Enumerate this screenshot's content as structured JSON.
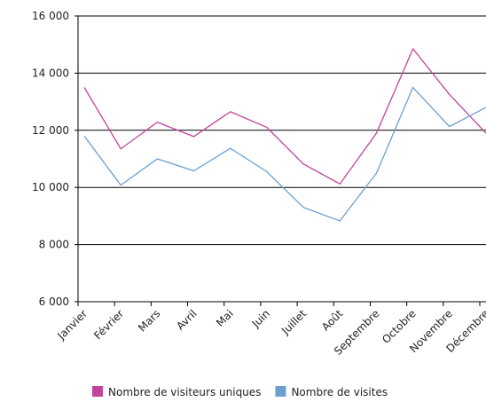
{
  "chart_data": {
    "type": "line",
    "categories": [
      "Janvier",
      "Février",
      "Mars",
      "Avril",
      "Mai",
      "Juin",
      "Juillet",
      "Août",
      "Septembre",
      "Octobre",
      "Novembre",
      "Décembre"
    ],
    "series": [
      {
        "name": "Nombre de visiteurs uniques",
        "color": "#c2449b",
        "values": [
          13500,
          11350,
          12280,
          11780,
          12650,
          12100,
          10820,
          10120,
          11900,
          14850,
          13250,
          11900
        ]
      },
      {
        "name": "Nombre de visites",
        "color": "#6a9fd0",
        "values": [
          11800,
          10080,
          11000,
          10580,
          11370,
          10550,
          9300,
          8830,
          10500,
          13500,
          12130,
          12800
        ]
      }
    ],
    "ylim": [
      6000,
      16000
    ],
    "yticks": [
      {
        "value": 6000,
        "label": "6 000"
      },
      {
        "value": 8000,
        "label": "8 000"
      },
      {
        "value": 10000,
        "label": "10 000"
      },
      {
        "value": 12000,
        "label": "12 000"
      },
      {
        "value": 14000,
        "label": "14 000"
      },
      {
        "value": 16000,
        "label": "16 000"
      }
    ],
    "grid": true,
    "legend": "bottom"
  }
}
